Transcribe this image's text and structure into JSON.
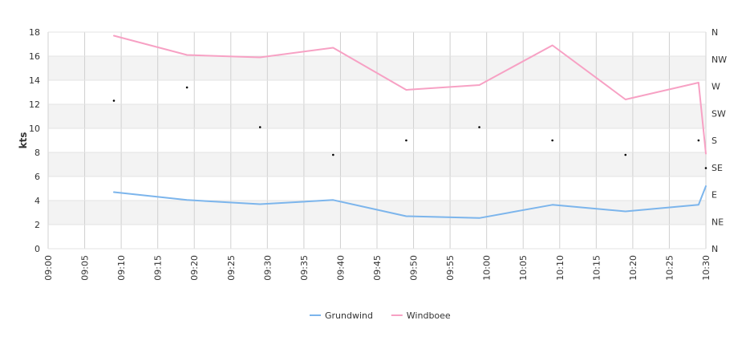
{
  "chart_data": {
    "type": "line",
    "title": "",
    "ylabel": "kts",
    "xlabel": "",
    "ylim": [
      0,
      18
    ],
    "y_ticks": [
      "0",
      "2",
      "4",
      "6",
      "8",
      "10",
      "12",
      "14",
      "16",
      "18"
    ],
    "x_ticks": [
      "09:00",
      "09:05",
      "09:10",
      "09:15",
      "09:20",
      "09:25",
      "09:30",
      "09:35",
      "09:40",
      "09:45",
      "09:50",
      "09:55",
      "10:00",
      "10:05",
      "10:10",
      "10:15",
      "10:20",
      "10:25",
      "10:30"
    ],
    "direction_axis": [
      "N",
      "NE",
      "E",
      "SE",
      "S",
      "SW",
      "W",
      "NW",
      "N"
    ],
    "legend_position": "bottom-center",
    "series": [
      {
        "name": "Grundwind",
        "color": "#7cb5ec",
        "points": [
          [
            "09:09",
            4.7
          ],
          [
            "09:19",
            4.05
          ],
          [
            "09:29",
            3.7
          ],
          [
            "09:39",
            4.05
          ],
          [
            "09:49",
            2.7
          ],
          [
            "09:59",
            2.55
          ],
          [
            "10:09",
            3.65
          ],
          [
            "10:19",
            3.1
          ],
          [
            "10:29",
            3.65
          ],
          [
            "10:30",
            5.2
          ]
        ]
      },
      {
        "name": "Windboee",
        "color": "#f7a1c4",
        "points": [
          [
            "09:09",
            17.7
          ],
          [
            "09:19",
            16.1
          ],
          [
            "09:29",
            15.9
          ],
          [
            "09:39",
            16.7
          ],
          [
            "09:49",
            13.2
          ],
          [
            "09:59",
            13.6
          ],
          [
            "10:09",
            16.9
          ],
          [
            "10:19",
            12.4
          ],
          [
            "10:29",
            13.8
          ],
          [
            "10:30",
            7.9
          ]
        ]
      }
    ],
    "direction_points": [
      [
        "09:09",
        12.3
      ],
      [
        "09:19",
        13.4
      ],
      [
        "09:29",
        10.1
      ],
      [
        "09:39",
        7.8
      ],
      [
        "09:49",
        9.0
      ],
      [
        "09:59",
        10.1
      ],
      [
        "10:09",
        9.0
      ],
      [
        "10:19",
        7.8
      ],
      [
        "10:29",
        9.0
      ],
      [
        "10:30",
        6.7
      ]
    ],
    "grid": true
  }
}
